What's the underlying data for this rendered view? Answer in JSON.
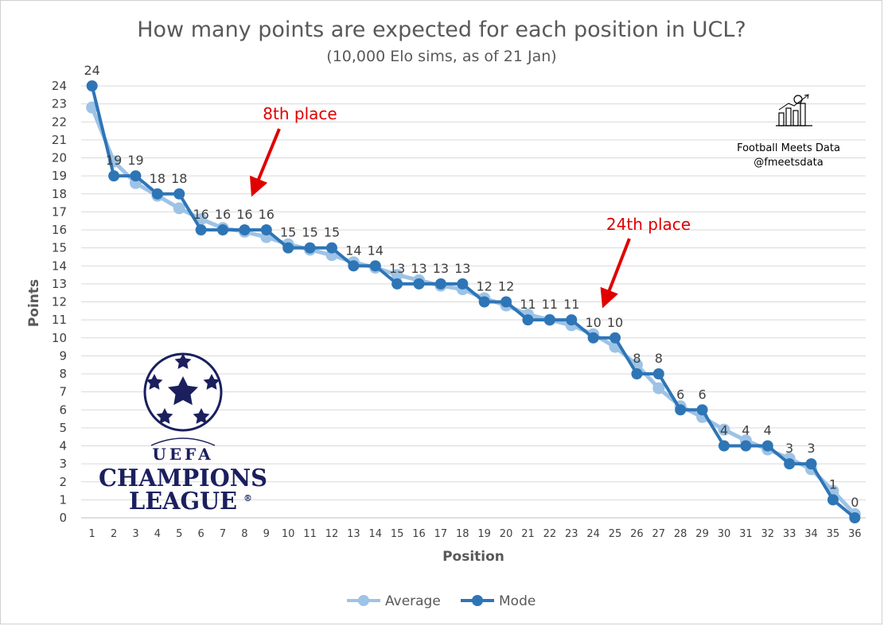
{
  "chart_data": {
    "type": "line",
    "title": "How many points are expected for each position in UCL?",
    "subtitle": "(10,000 Elo sims, as of 21 Jan)",
    "xlabel": "Position",
    "ylabel": "Points",
    "ylim": [
      0,
      24
    ],
    "yticks": [
      0,
      1,
      2,
      3,
      4,
      5,
      6,
      7,
      8,
      9,
      10,
      11,
      12,
      13,
      14,
      15,
      16,
      17,
      18,
      19,
      20,
      21,
      22,
      23,
      24
    ],
    "x": [
      1,
      2,
      3,
      4,
      5,
      6,
      7,
      8,
      9,
      10,
      11,
      12,
      13,
      14,
      15,
      16,
      17,
      18,
      19,
      20,
      21,
      22,
      23,
      24,
      25,
      26,
      27,
      28,
      29,
      30,
      31,
      32,
      33,
      34,
      35,
      36
    ],
    "grid": true,
    "legend_position": "bottom",
    "series": [
      {
        "name": "Average",
        "color": "#9dc3e6",
        "values": [
          22.8,
          19.8,
          18.6,
          17.9,
          17.2,
          16.6,
          16.1,
          15.9,
          15.6,
          15.2,
          14.9,
          14.6,
          14.2,
          13.9,
          13.5,
          13.2,
          12.9,
          12.7,
          12.2,
          11.8,
          11.3,
          11.0,
          10.7,
          10.2,
          9.5,
          8.5,
          7.2,
          6.2,
          5.6,
          4.9,
          4.3,
          3.8,
          3.3,
          2.7,
          1.5,
          0.2
        ]
      },
      {
        "name": "Mode",
        "color": "#2e75b6",
        "values": [
          24,
          19,
          19,
          18,
          18,
          16,
          16,
          16,
          16,
          15,
          15,
          15,
          14,
          14,
          13,
          13,
          13,
          13,
          12,
          12,
          11,
          11,
          11,
          10,
          10,
          8,
          8,
          6,
          6,
          4,
          4,
          4,
          3,
          3,
          1,
          0
        ],
        "data_labels": [
          "24",
          "19",
          "19",
          "18",
          "18",
          "16",
          "16",
          "16",
          "16",
          "15",
          "15",
          "15",
          "14",
          "14",
          "13",
          "13",
          "13",
          "13",
          "12",
          "12",
          "11",
          "11",
          "11",
          "10",
          "10",
          "8",
          "8",
          "6",
          "6",
          "4",
          "4",
          "4",
          "3",
          "3",
          "1",
          "0"
        ]
      }
    ],
    "annotations": [
      {
        "text": "8th place",
        "position": 8,
        "color": "#e00000"
      },
      {
        "text": "24th place",
        "position": 24,
        "color": "#e00000"
      }
    ]
  },
  "branding": {
    "name": "Football Meets Data",
    "handle": "@fmeetsdata",
    "icon": "bar-chart-football-icon"
  },
  "logo": {
    "line1": "UEFA",
    "line2": "CHAMPIONS",
    "line3": "LEAGUE",
    "mark": "®",
    "icon": "starball-icon"
  }
}
